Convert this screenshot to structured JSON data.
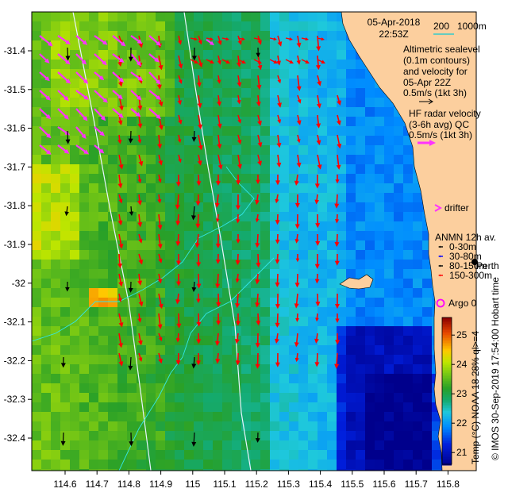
{
  "header": {
    "date": "05-Apr-2018",
    "time": "22:53Z",
    "isobath_label": "200",
    "isobath_label2": "1000m"
  },
  "legend": {
    "altimetric_lines": [
      "Altimetric sealevel",
      "(0.1m contours)",
      "and velocity for",
      "05-Apr 22Z"
    ],
    "altimetric_scale": "0.5m/s (1kt 3h)",
    "hf_radar_lines": [
      "HF radar velocity",
      "(3-6h avg) QC",
      "0.5m/s (1kt 3h)"
    ],
    "drifter": "drifter",
    "anmn_title": "ANMN 12h av.",
    "anmn_items": [
      {
        "label": "0-30m",
        "color": "#000000"
      },
      {
        "label": "30-80m",
        "color": "#0000ff"
      },
      {
        "label": "80-150m",
        "color": "#000000"
      },
      {
        "label": "150-300m",
        "color": "#ff0000"
      }
    ],
    "perth": "Perth",
    "hobart": "Hobart time",
    "argo": "Argo 0",
    "colorbar_title": "Temp (°C) NOAA 18 28% ql>=4",
    "colorbar_ticks": [
      "21",
      "22",
      "23",
      "24",
      "25"
    ],
    "credit": "© IMOS 30-Sep-2019 17:54:00 Hobart time"
  },
  "axes": {
    "x_ticks": [
      "114.6",
      "114.7",
      "114.8",
      "114.9",
      "115",
      "115.1",
      "115.2",
      "115.3",
      "115.4",
      "115.5",
      "115.6",
      "115.7",
      "115.8"
    ],
    "y_ticks": [
      "-31.4",
      "-31.5",
      "-31.6",
      "-31.7",
      "-31.8",
      "-31.9",
      "-32",
      "-32.1",
      "-32.2",
      "-32.3",
      "-32.4"
    ]
  },
  "colors": {
    "land": "#fccf9e",
    "hf_arrow": "#ff0000",
    "alt_arrow": "#ff33ff",
    "isobath": "#e8f4ff",
    "contour": "#33e6e6"
  }
}
